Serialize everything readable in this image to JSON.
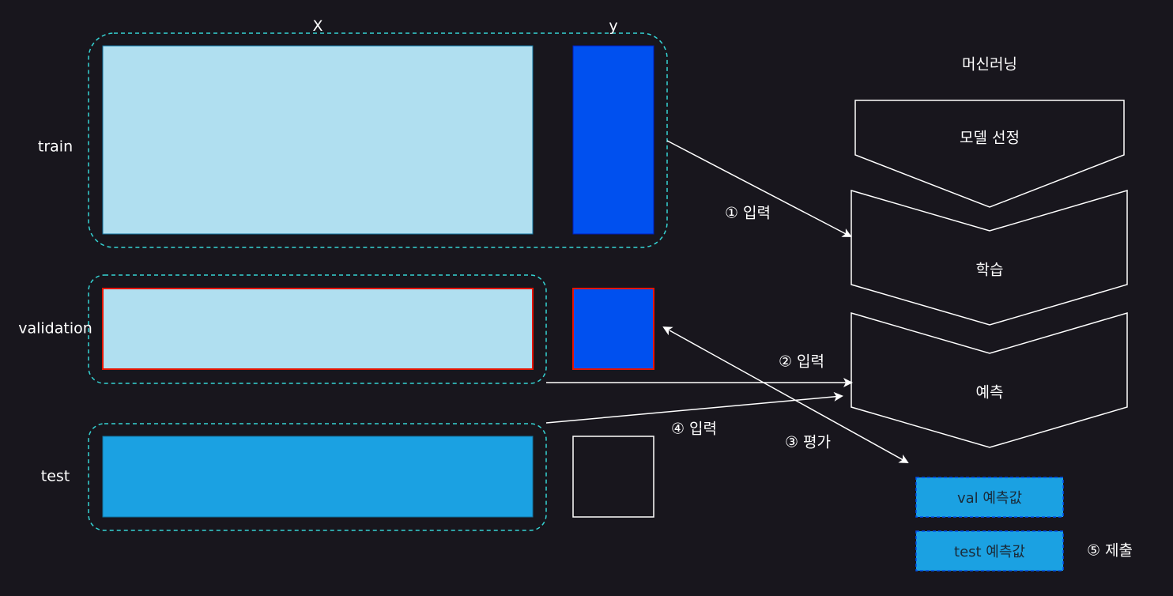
{
  "columns": {
    "x": "X",
    "y": "y"
  },
  "rows": {
    "train": "train",
    "validation": "validation",
    "test": "test"
  },
  "machine_learning": {
    "title": "머신러닝",
    "steps": [
      "모델 선정",
      "학습",
      "예측"
    ]
  },
  "arrows": {
    "input_1": "① 입력",
    "input_2": "② 입력",
    "evaluate_3": "③ 평가",
    "input_4": "④ 입력",
    "submit_5": "⑤ 제출"
  },
  "outputs": {
    "val_pred": "val 예측값",
    "test_pred": "test 예측값"
  },
  "colors": {
    "background": "#18161d",
    "x_fill_light": "#b0dff0",
    "x_fill_test": "#1ba1e2",
    "y_fill": "#0050ef",
    "dashed_group": "#35d3d3",
    "highlight_border": "#e51400",
    "output_fill": "#1ba1e2",
    "output_border": "#0050ef"
  }
}
